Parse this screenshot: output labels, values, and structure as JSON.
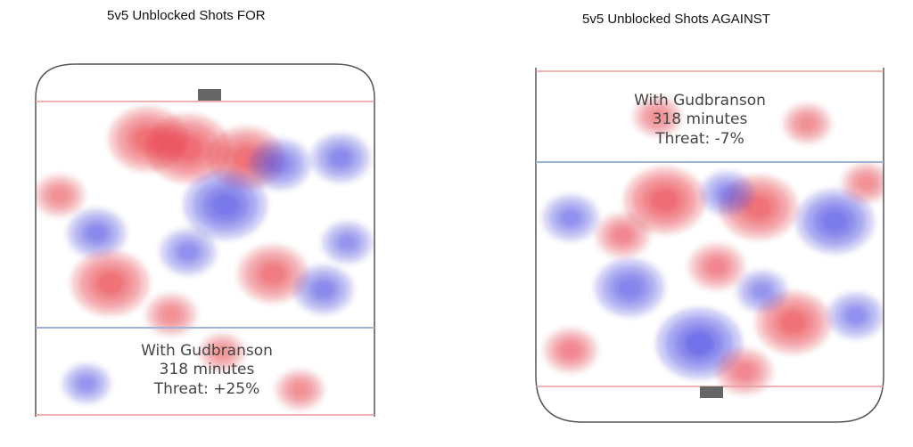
{
  "chart_data": [
    {
      "type": "heatmap",
      "title": "5v5 Unblocked Shots FOR",
      "annotation": [
        "With Gudbranson",
        "318 minutes",
        "Threat: +25%"
      ],
      "colors": {
        "positive": "#e8202a",
        "negative": "#2f2fe0"
      },
      "hotspots": [
        {
          "x": 0.45,
          "y": 0.15,
          "sign": 1,
          "intensity": 0.95
        },
        {
          "x": 0.33,
          "y": 0.12,
          "sign": 1,
          "intensity": 0.85
        },
        {
          "x": 0.62,
          "y": 0.18,
          "sign": 1,
          "intensity": 0.8
        },
        {
          "x": 0.56,
          "y": 0.33,
          "sign": -1,
          "intensity": 0.95
        },
        {
          "x": 0.72,
          "y": 0.2,
          "sign": -1,
          "intensity": 0.55
        },
        {
          "x": 0.9,
          "y": 0.18,
          "sign": -1,
          "intensity": 0.5
        },
        {
          "x": 0.18,
          "y": 0.42,
          "sign": -1,
          "intensity": 0.5
        },
        {
          "x": 0.22,
          "y": 0.58,
          "sign": 1,
          "intensity": 0.85
        },
        {
          "x": 0.07,
          "y": 0.3,
          "sign": 1,
          "intensity": 0.35
        },
        {
          "x": 0.45,
          "y": 0.48,
          "sign": -1,
          "intensity": 0.45
        },
        {
          "x": 0.7,
          "y": 0.55,
          "sign": 1,
          "intensity": 0.7
        },
        {
          "x": 0.85,
          "y": 0.6,
          "sign": -1,
          "intensity": 0.5
        },
        {
          "x": 0.4,
          "y": 0.68,
          "sign": 1,
          "intensity": 0.35
        },
        {
          "x": 0.92,
          "y": 0.45,
          "sign": -1,
          "intensity": 0.35
        },
        {
          "x": 0.15,
          "y": 0.9,
          "sign": -1,
          "intensity": 0.3
        },
        {
          "x": 0.78,
          "y": 0.92,
          "sign": 1,
          "intensity": 0.3
        },
        {
          "x": 0.55,
          "y": 0.8,
          "sign": 1,
          "intensity": 0.25
        }
      ]
    },
    {
      "type": "heatmap",
      "title": "5v5 Unblocked Shots AGAINST",
      "annotation": [
        "With Gudbranson",
        "318 minutes",
        "Threat: -7%"
      ],
      "colors": {
        "positive": "#e8202a",
        "negative": "#2f2fe0"
      },
      "hotspots": [
        {
          "x": 0.37,
          "y": 0.37,
          "sign": 1,
          "intensity": 0.9
        },
        {
          "x": 0.64,
          "y": 0.39,
          "sign": 1,
          "intensity": 0.85
        },
        {
          "x": 0.86,
          "y": 0.43,
          "sign": -1,
          "intensity": 0.85
        },
        {
          "x": 0.55,
          "y": 0.35,
          "sign": -1,
          "intensity": 0.4
        },
        {
          "x": 0.1,
          "y": 0.42,
          "sign": -1,
          "intensity": 0.45
        },
        {
          "x": 0.25,
          "y": 0.47,
          "sign": 1,
          "intensity": 0.4
        },
        {
          "x": 0.27,
          "y": 0.62,
          "sign": -1,
          "intensity": 0.7
        },
        {
          "x": 0.52,
          "y": 0.56,
          "sign": 1,
          "intensity": 0.45
        },
        {
          "x": 0.47,
          "y": 0.78,
          "sign": -1,
          "intensity": 1.0
        },
        {
          "x": 0.74,
          "y": 0.72,
          "sign": 1,
          "intensity": 0.8
        },
        {
          "x": 0.92,
          "y": 0.7,
          "sign": -1,
          "intensity": 0.45
        },
        {
          "x": 0.6,
          "y": 0.86,
          "sign": 1,
          "intensity": 0.45
        },
        {
          "x": 0.1,
          "y": 0.8,
          "sign": 1,
          "intensity": 0.4
        },
        {
          "x": 0.35,
          "y": 0.13,
          "sign": 1,
          "intensity": 0.3
        },
        {
          "x": 0.78,
          "y": 0.15,
          "sign": 1,
          "intensity": 0.3
        },
        {
          "x": 0.65,
          "y": 0.63,
          "sign": -1,
          "intensity": 0.35
        },
        {
          "x": 0.95,
          "y": 0.32,
          "sign": 1,
          "intensity": 0.3
        }
      ]
    }
  ]
}
